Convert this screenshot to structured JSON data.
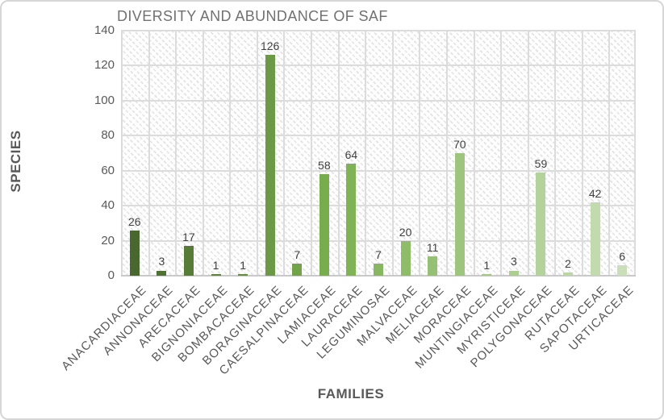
{
  "chart_data": {
    "type": "bar",
    "title": "DIVERSITY AND ABUNDANCE OF SAF",
    "xlabel": "FAMILIES",
    "ylabel": "SPECIES",
    "categories": [
      "ANACARDIACEAE",
      "ANNONACEAE",
      "ARECACEAE",
      "BIGNONIACEAE",
      "BOMBACACEAE",
      "BORAGINACEAE",
      "CAESALPINACEAE",
      "LAMIACEAE",
      "LAURACEAE",
      "LEGUMINOSAE",
      "MALVACEAE",
      "MELIACEAE",
      "MORACEAE",
      "MUNTINGIACEAE",
      "MYRISTICEAE",
      "POLYGONACEAE",
      "RUTACEAE",
      "SAPOTACEAE",
      "URTICACEAE"
    ],
    "values": [
      26,
      3,
      17,
      1,
      1,
      126,
      7,
      58,
      64,
      7,
      20,
      11,
      70,
      1,
      3,
      59,
      2,
      42,
      6
    ],
    "ylim": [
      0,
      140
    ],
    "y_ticks": [
      0,
      20,
      40,
      60,
      80,
      100,
      120,
      140
    ],
    "grid": true,
    "data_labels": true,
    "legend": "none",
    "plot_background": "diagonal-hatch-pattern",
    "bar_colors": [
      "#48682F",
      "#4F7233",
      "#567C37",
      "#5D853C",
      "#648F40",
      "#6B9945",
      "#72A349",
      "#78AD4E",
      "#80B356",
      "#87B760",
      "#8FBC69",
      "#96C073",
      "#9DC57D",
      "#A5C987",
      "#ACCE91",
      "#B4D29B",
      "#BBD6A5",
      "#C2DBAE",
      "#CADFB8"
    ],
    "colors": {
      "title": "#717171",
      "axis_title": "#595959",
      "tick_label": "#595959",
      "data_label": "#404040",
      "gridline": "#dcdcdc",
      "axis_line": "#c9c9c9",
      "chart_border": "#d6d6d6",
      "background": "#ffffff"
    }
  }
}
